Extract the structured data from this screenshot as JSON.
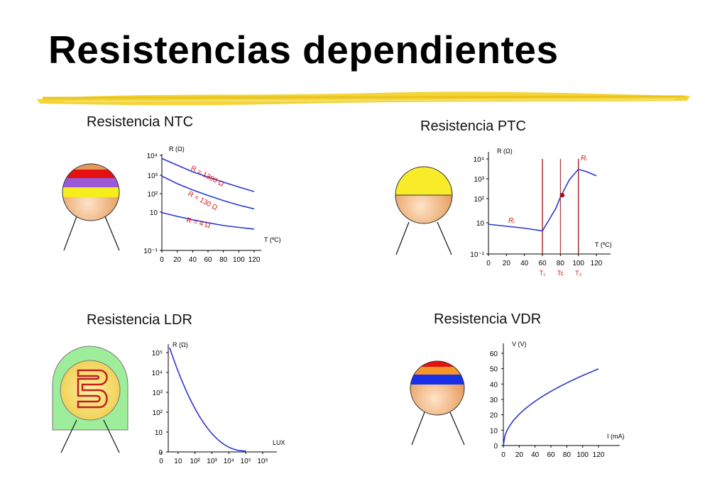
{
  "slide": {
    "title": "Resistencias dependientes",
    "colors": {
      "accent_brush": "#f2d22e",
      "curve": "#2b35d6",
      "annotation": "#e01010",
      "marker_line": "#a01010"
    }
  },
  "panels": [
    {
      "id": "ntc",
      "title": "Resistencia NTC",
      "icon": "ntc-resistor-icon",
      "chart_data": {
        "type": "line",
        "ylabel": "R (Ω)",
        "xlabel": "T (ºC)",
        "x_ticks": [
          "0",
          "20",
          "40",
          "60",
          "80",
          "100",
          "120"
        ],
        "y_ticks": [
          "10⁻¹",
          "10",
          "10²",
          "10³",
          "10⁴"
        ],
        "y_scale": "log",
        "xlim": [
          0,
          120
        ],
        "series": [
          {
            "name": "R = 1300 Ω",
            "x": [
              0,
              20,
              40,
              60,
              80,
              100,
              120
            ],
            "y": [
              7000,
              3200,
              1500,
              800,
              420,
              230,
              130
            ]
          },
          {
            "name": "R = 130 Ω",
            "x": [
              0,
              20,
              40,
              60,
              80,
              100,
              120
            ],
            "y": [
              900,
              350,
              160,
              80,
              42,
              24,
              15
            ]
          },
          {
            "name": "R = 4 Ω",
            "x": [
              0,
              20,
              40,
              60,
              80,
              100,
              120
            ],
            "y": [
              9.5,
              6,
              4,
              2.8,
              2,
              1.6,
              1.3
            ]
          }
        ]
      }
    },
    {
      "id": "ptc",
      "title": "Resistencia PTC",
      "icon": "ptc-resistor-icon",
      "chart_data": {
        "type": "line",
        "ylabel": "R (Ω)",
        "xlabel": "T (ºC)",
        "x_ticks": [
          "0",
          "20",
          "40",
          "60",
          "80",
          "100",
          "120"
        ],
        "y_ticks": [
          "10⁻¹",
          "10",
          "10²",
          "10³",
          "10⁴"
        ],
        "y_scale": "log",
        "xlim": [
          0,
          120
        ],
        "markers": [
          "T₁",
          "Tc",
          "T₂"
        ],
        "curve_labels": [
          "Rᵢ",
          "Rᵢ"
        ],
        "series": [
          {
            "x": [
              0,
              20,
              40,
              60,
              75,
              80,
              90,
              100,
              110,
              120
            ],
            "y": [
              8,
              6,
              4.5,
              3,
              40,
              120,
              900,
              3000,
              2200,
              1400
            ]
          }
        ]
      }
    },
    {
      "id": "ldr",
      "title": "Resistencia LDR",
      "icon": "ldr-resistor-icon",
      "chart_data": {
        "type": "line",
        "ylabel": "R (Ω)",
        "xlabel": "LUX",
        "x_ticks": [
          "0",
          "10",
          "10²",
          "10³",
          "10⁴",
          "10⁵",
          "10⁶"
        ],
        "y_ticks": [
          "0",
          "10",
          "10²",
          "10³",
          "10⁴",
          "10⁵"
        ],
        "series": [
          {
            "x": [
              0.5,
              1,
              2,
              3,
              4,
              5
            ],
            "y": [
              5,
              3.4,
              2.2,
              1.4,
              0.7,
              0.1
            ]
          }
        ]
      }
    },
    {
      "id": "vdr",
      "title": "Resistencia VDR",
      "icon": "vdr-resistor-icon",
      "chart_data": {
        "type": "line",
        "ylabel": "V (V)",
        "xlabel": "I (mA)",
        "x_ticks": [
          "0",
          "20",
          "40",
          "60",
          "80",
          "100",
          "120"
        ],
        "y_ticks": [
          "0",
          "10",
          "20",
          "30",
          "40",
          "50",
          "60"
        ],
        "xlim": [
          0,
          120
        ],
        "ylim": [
          0,
          60
        ],
        "series": [
          {
            "x": [
              0,
              2,
              5,
              10,
              20,
              30,
              40,
              60,
              80,
              100,
              120
            ],
            "y": [
              0,
              8,
              14,
              19,
              25,
              29,
              33,
              38,
              42,
              46,
              50
            ]
          }
        ]
      }
    }
  ]
}
